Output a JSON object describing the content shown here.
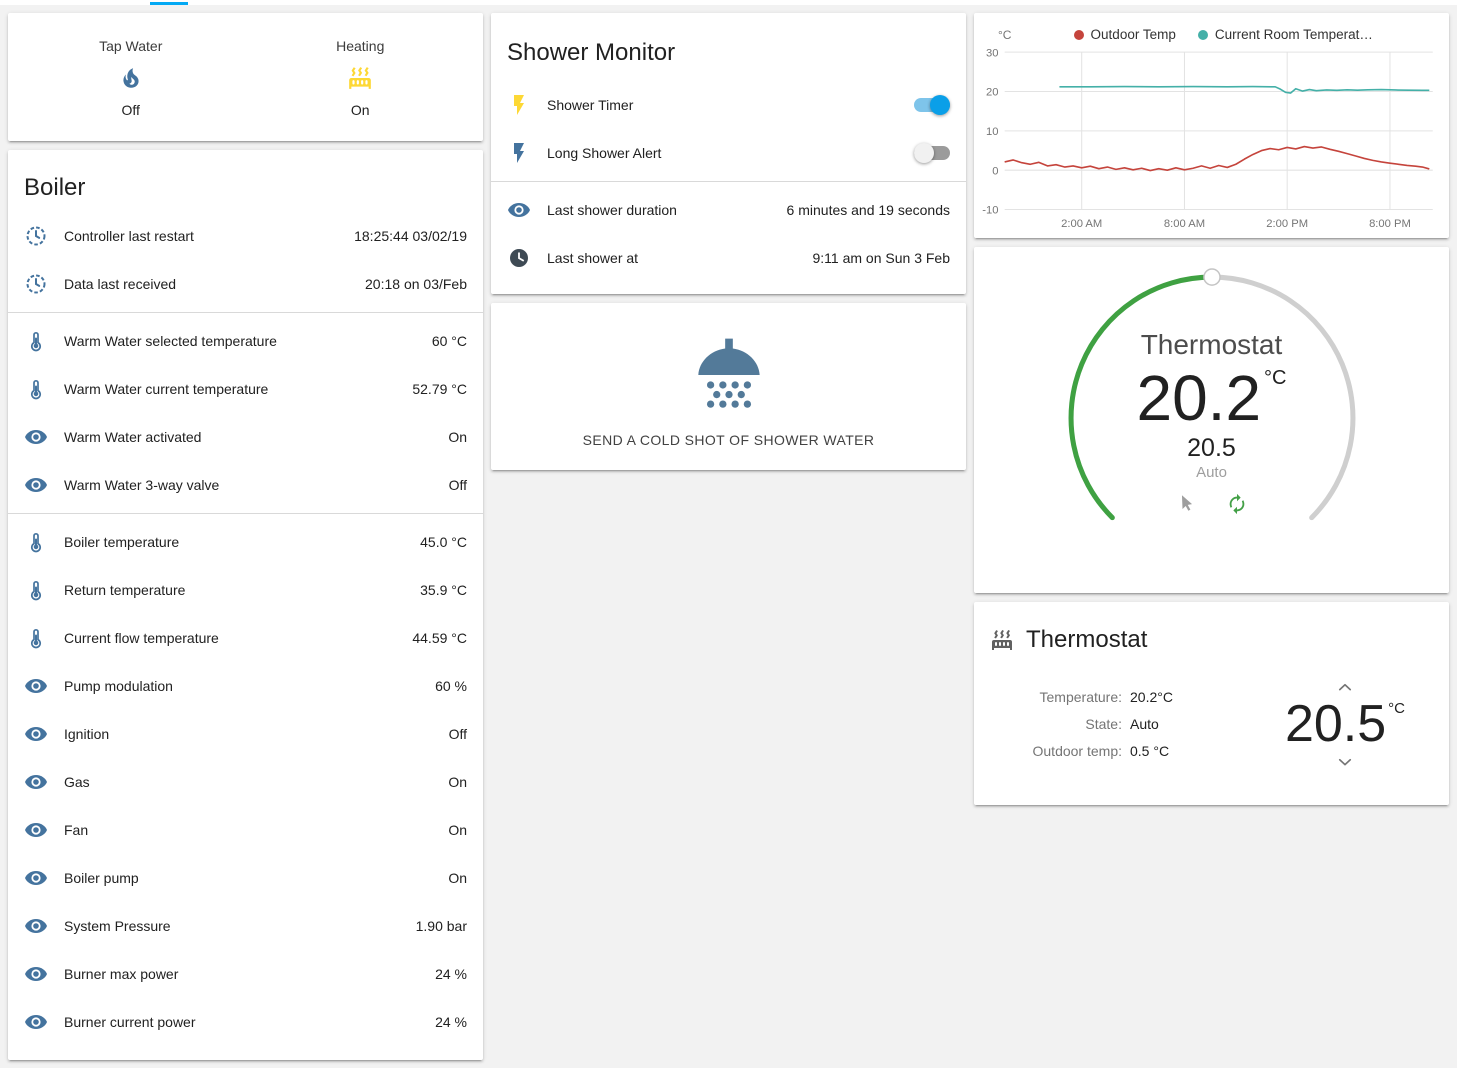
{
  "colors": {
    "accent": "#03a9f4",
    "icon_blue": "#44739e",
    "icon_yellow": "#fdd835",
    "dial_green": "#3fa142",
    "shower_icon": "#537a99"
  },
  "glance": {
    "items": [
      {
        "icon": "fire",
        "label": "Tap Water",
        "state": "Off"
      },
      {
        "icon": "radiator",
        "label": "Heating",
        "state": "On"
      }
    ]
  },
  "boiler": {
    "title": "Boiler",
    "rows": [
      {
        "icon": "progress-clock",
        "label": "Controller last restart",
        "value": "18:25:44 03/02/19"
      },
      {
        "icon": "progress-clock",
        "label": "Data last received",
        "value": "20:18 on 03/Feb"
      },
      {
        "icon": "thermometer",
        "label": "Warm Water selected temperature",
        "value": "60 °C"
      },
      {
        "icon": "thermometer",
        "label": "Warm Water current temperature",
        "value": "52.79 °C"
      },
      {
        "icon": "eye",
        "label": "Warm Water activated",
        "value": "On"
      },
      {
        "icon": "eye",
        "label": "Warm Water 3-way valve",
        "value": "Off"
      },
      {
        "icon": "thermometer",
        "label": "Boiler temperature",
        "value": "45.0 °C"
      },
      {
        "icon": "thermometer",
        "label": "Return temperature",
        "value": "35.9 °C"
      },
      {
        "icon": "thermometer",
        "label": "Current flow temperature",
        "value": "44.59 °C"
      },
      {
        "icon": "eye",
        "label": "Pump modulation",
        "value": "60 %"
      },
      {
        "icon": "eye",
        "label": "Ignition",
        "value": "Off"
      },
      {
        "icon": "eye",
        "label": "Gas",
        "value": "On"
      },
      {
        "icon": "eye",
        "label": "Fan",
        "value": "On"
      },
      {
        "icon": "eye",
        "label": "Boiler pump",
        "value": "On"
      },
      {
        "icon": "eye",
        "label": "System Pressure",
        "value": "1.90 bar"
      },
      {
        "icon": "eye",
        "label": "Burner max power",
        "value": "24 %"
      },
      {
        "icon": "eye",
        "label": "Burner current power",
        "value": "24 %"
      }
    ]
  },
  "shower_monitor": {
    "title": "Shower Monitor",
    "toggles": [
      {
        "icon": "flash",
        "label": "Shower Timer",
        "on": true
      },
      {
        "icon": "flash",
        "label": "Long Shower Alert",
        "on": false
      }
    ],
    "attributes": [
      {
        "icon": "eye",
        "label": "Last shower duration",
        "value": "6 minutes and 19 seconds"
      },
      {
        "icon": "clock",
        "label": "Last shower at",
        "value": "9:11 am on Sun 3 Feb"
      }
    ],
    "action_label": "SEND A COLD SHOT OF SHOWER WATER"
  },
  "chart_data": {
    "type": "line",
    "title": "",
    "unit": "°C",
    "ylim": [
      -10,
      30
    ],
    "yticks": [
      30,
      20,
      10,
      0,
      -10
    ],
    "xlim": [
      0,
      25
    ],
    "xticks": [
      {
        "x": 4.5,
        "label": "2:00 AM"
      },
      {
        "x": 10.5,
        "label": "8:00 AM"
      },
      {
        "x": 16.5,
        "label": "2:00 PM"
      },
      {
        "x": 22.5,
        "label": "8:00 PM"
      }
    ],
    "grid": true,
    "legend_position": "top",
    "series": [
      {
        "name": "Outdoor Temp",
        "color": "#c5443c",
        "points": [
          [
            0,
            2.1
          ],
          [
            0.5,
            2.6
          ],
          [
            1,
            1.9
          ],
          [
            1.5,
            1.5
          ],
          [
            2,
            2.0
          ],
          [
            2.5,
            1.1
          ],
          [
            3,
            1.4
          ],
          [
            3.5,
            0.8
          ],
          [
            4,
            1.1
          ],
          [
            4.5,
            0.6
          ],
          [
            5,
            1.0
          ],
          [
            5.5,
            0.4
          ],
          [
            6,
            0.8
          ],
          [
            6.5,
            0.2
          ],
          [
            7,
            0.6
          ],
          [
            7.5,
            0.1
          ],
          [
            8,
            0.5
          ],
          [
            8.5,
            -0.1
          ],
          [
            9,
            0.4
          ],
          [
            9.5,
            0.0
          ],
          [
            10,
            0.6
          ],
          [
            10.5,
            0.1
          ],
          [
            11,
            0.5
          ],
          [
            11.5,
            1.1
          ],
          [
            12,
            0.5
          ],
          [
            12.5,
            1.2
          ],
          [
            13,
            0.7
          ],
          [
            13.5,
            1.5
          ],
          [
            14,
            2.8
          ],
          [
            14.5,
            4.0
          ],
          [
            15,
            5.0
          ],
          [
            15.5,
            5.5
          ],
          [
            16,
            5.2
          ],
          [
            16.5,
            5.8
          ],
          [
            17,
            5.4
          ],
          [
            17.5,
            6.0
          ],
          [
            18,
            5.6
          ],
          [
            18.5,
            5.9
          ],
          [
            19,
            5.3
          ],
          [
            19.5,
            4.8
          ],
          [
            20,
            4.2
          ],
          [
            20.5,
            3.6
          ],
          [
            21,
            3.0
          ],
          [
            21.5,
            2.5
          ],
          [
            22,
            2.1
          ],
          [
            22.5,
            1.8
          ],
          [
            23,
            1.5
          ],
          [
            23.5,
            1.2
          ],
          [
            24,
            1.0
          ],
          [
            24.4,
            0.8
          ],
          [
            24.8,
            0.3
          ]
        ]
      },
      {
        "name": "Current Room Temperat…",
        "color": "#44b0a8",
        "points": [
          [
            3.2,
            21.2
          ],
          [
            5,
            21.2
          ],
          [
            7,
            21.25
          ],
          [
            9,
            21.2
          ],
          [
            11,
            21.25
          ],
          [
            13,
            21.2
          ],
          [
            14.5,
            21.25
          ],
          [
            15.8,
            21.2
          ],
          [
            16.1,
            20.6
          ],
          [
            16.4,
            19.8
          ],
          [
            16.7,
            19.6
          ],
          [
            17,
            20.7
          ],
          [
            17.4,
            20.1
          ],
          [
            17.8,
            20.5
          ],
          [
            18.2,
            20.2
          ],
          [
            18.8,
            20.4
          ],
          [
            19.4,
            20.3
          ],
          [
            20,
            20.45
          ],
          [
            20.6,
            20.35
          ],
          [
            21.2,
            20.45
          ],
          [
            22,
            20.5
          ],
          [
            22.8,
            20.4
          ],
          [
            23.6,
            20.35
          ],
          [
            24.4,
            20.3
          ],
          [
            24.8,
            20.3
          ]
        ]
      }
    ]
  },
  "dial": {
    "title": "Thermostat",
    "current": "20.2",
    "unit": "°C",
    "target": "20.5",
    "mode": "Auto"
  },
  "thermostat_card": {
    "title": "Thermostat",
    "attributes": [
      {
        "label": "Temperature:",
        "value": "20.2°C"
      },
      {
        "label": "State:",
        "value": "Auto"
      },
      {
        "label": "Outdoor temp:",
        "value": "0.5 °C"
      }
    ],
    "target": "20.5",
    "unit": "°C"
  }
}
